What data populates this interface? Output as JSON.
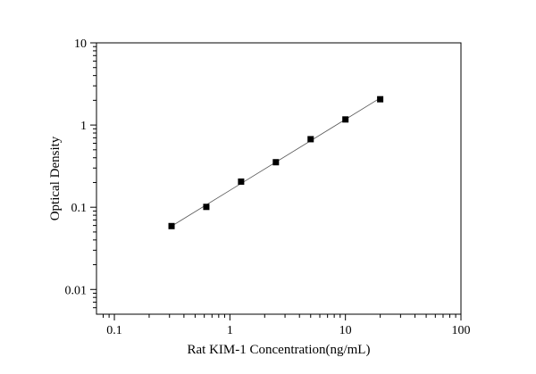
{
  "chart_data": {
    "type": "scatter",
    "title": "",
    "xlabel": "Rat KIM-1 Concentration(ng/mL)",
    "ylabel": "Optical Density",
    "x_scale": "log",
    "y_scale": "log",
    "xlim": [
      0.07,
      100
    ],
    "ylim": [
      0.005,
      10
    ],
    "x_ticks": [
      0.1,
      1,
      10,
      100
    ],
    "x_tick_labels": [
      "0.1",
      "1",
      "10",
      "100"
    ],
    "y_ticks": [
      0.01,
      0.1,
      1,
      10
    ],
    "y_tick_labels": [
      "0.01",
      "0.1",
      "1",
      "10"
    ],
    "grid": false,
    "legend": "none",
    "fit_line": true,
    "series": [
      {
        "x": [
          0.3125,
          0.625,
          1.25,
          2.5,
          5,
          10,
          20
        ],
        "y": [
          0.059,
          0.101,
          0.205,
          0.353,
          0.673,
          1.17,
          2.06
        ],
        "marker": "square",
        "color": "#000000"
      }
    ]
  }
}
